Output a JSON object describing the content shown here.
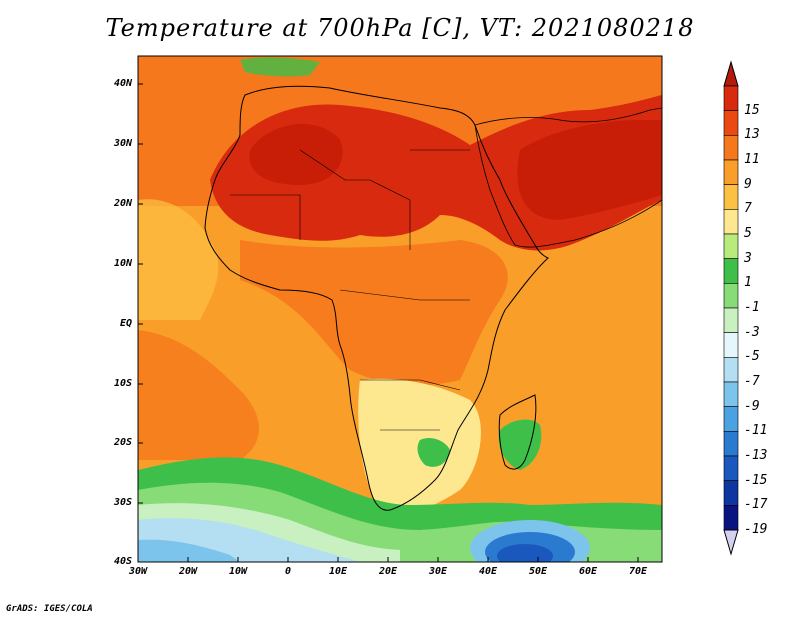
{
  "title": "Temperature at 700hPa [C], VT: 2021080218",
  "credit": "GrADS: IGES/COLA",
  "map": {
    "variable": "Temperature at 700hPa",
    "units": "C",
    "valid_time": "2021080218",
    "lon_range": [
      -30,
      75
    ],
    "lat_range": [
      -40,
      45
    ],
    "lat_ticks": [
      "40N",
      "30N",
      "20N",
      "10N",
      "EQ",
      "10S",
      "20S",
      "30S",
      "40S"
    ],
    "lon_ticks": [
      "30W",
      "20W",
      "10W",
      "0",
      "10E",
      "20E",
      "30E",
      "40E",
      "50E",
      "60E",
      "70E"
    ]
  },
  "colorbar": {
    "labels": [
      "15",
      "13",
      "11",
      "9",
      "7",
      "5",
      "3",
      "1",
      "-1",
      "-3",
      "-5",
      "-7",
      "-9",
      "-11",
      "-13",
      "-15",
      "-17",
      "-19"
    ],
    "colors": [
      "#d82a0e",
      "#ea4a12",
      "#f6781c",
      "#fa9e2a",
      "#fcc045",
      "#fde890",
      "#b9ea7c",
      "#3dbf4a",
      "#87dc78",
      "#c8f0c0",
      "#e6f7fb",
      "#b4def2",
      "#7cc4ec",
      "#4aa2e0",
      "#2a7ad0",
      "#1a58be",
      "#0e36a0",
      "#081480"
    ],
    "top_arrow_color": "#b41a0a",
    "bottom_arrow_color": "#d4d0f0"
  },
  "palette": {
    "ocean_south_warm": "#fa9e2a",
    "sahara_hot": "#d82a0e",
    "southern_cold": "#7cc4ec",
    "deep_cold": "#1a58be"
  }
}
